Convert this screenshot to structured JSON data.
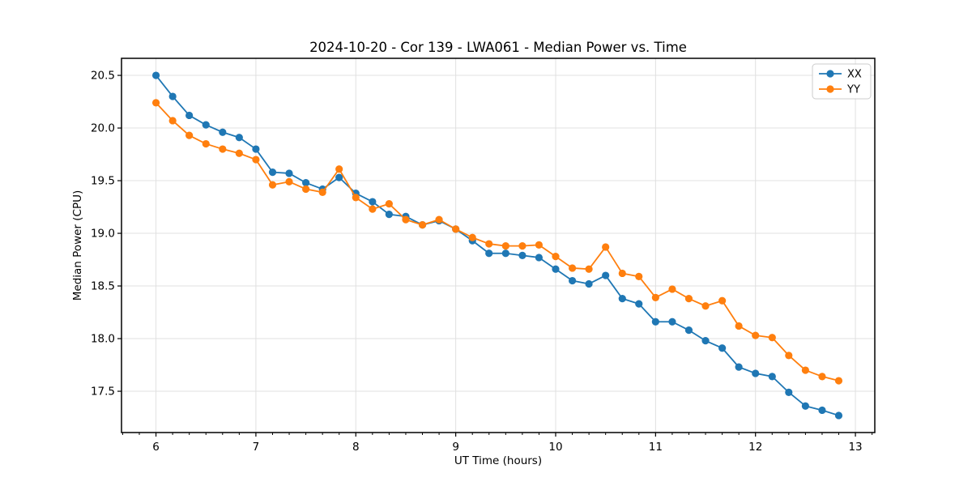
{
  "chart_data": {
    "type": "line",
    "title": "2024-10-20 - Cor 139 - LWA061 - Median Power vs. Time",
    "xlabel": "UT Time (hours)",
    "ylabel": "Median Power (CPU)",
    "xlim": [
      5.655,
      13.194
    ],
    "ylim": [
      17.108,
      20.662
    ],
    "xticks": [
      6,
      7,
      8,
      9,
      10,
      11,
      12,
      13
    ],
    "yticks": [
      17.5,
      18.0,
      18.5,
      19.0,
      19.5,
      20.0,
      20.5
    ],
    "x_minor_tick_step": 0.1666667,
    "grid": true,
    "legend_position": "upper right",
    "background_color": "#ffffff",
    "grid_color": "#e0e0e0",
    "spine_color": "#000000",
    "x": [
      6.0,
      6.167,
      6.333,
      6.5,
      6.667,
      6.833,
      7.0,
      7.167,
      7.333,
      7.5,
      7.667,
      7.833,
      8.0,
      8.167,
      8.333,
      8.5,
      8.667,
      8.833,
      9.0,
      9.167,
      9.333,
      9.5,
      9.667,
      9.833,
      10.0,
      10.167,
      10.333,
      10.5,
      10.667,
      10.833,
      11.0,
      11.167,
      11.333,
      11.5,
      11.667,
      11.833,
      12.0,
      12.167,
      12.333,
      12.5,
      12.667,
      12.833
    ],
    "series": [
      {
        "name": "XX",
        "color": "#1f77b4",
        "values": [
          20.5,
          20.3,
          20.12,
          20.03,
          19.96,
          19.91,
          19.8,
          19.58,
          19.57,
          19.48,
          19.42,
          19.53,
          19.38,
          19.3,
          19.18,
          19.16,
          19.08,
          19.12,
          19.04,
          18.93,
          18.81,
          18.81,
          18.79,
          18.77,
          18.66,
          18.55,
          18.52,
          18.6,
          18.38,
          18.33,
          18.16,
          18.16,
          18.08,
          17.98,
          17.91,
          17.73,
          17.67,
          17.64,
          17.49,
          17.36,
          17.32,
          17.27
        ]
      },
      {
        "name": "YY",
        "color": "#ff7f0e",
        "values": [
          20.24,
          20.07,
          19.93,
          19.85,
          19.8,
          19.76,
          19.7,
          19.46,
          19.49,
          19.42,
          19.39,
          19.61,
          19.34,
          19.23,
          19.28,
          19.13,
          19.08,
          19.13,
          19.04,
          18.96,
          18.9,
          18.88,
          18.88,
          18.89,
          18.78,
          18.67,
          18.66,
          18.87,
          18.62,
          18.59,
          18.39,
          18.47,
          18.38,
          18.31,
          18.36,
          18.12,
          18.03,
          18.01,
          17.84,
          17.7,
          17.64,
          17.6
        ]
      }
    ]
  }
}
